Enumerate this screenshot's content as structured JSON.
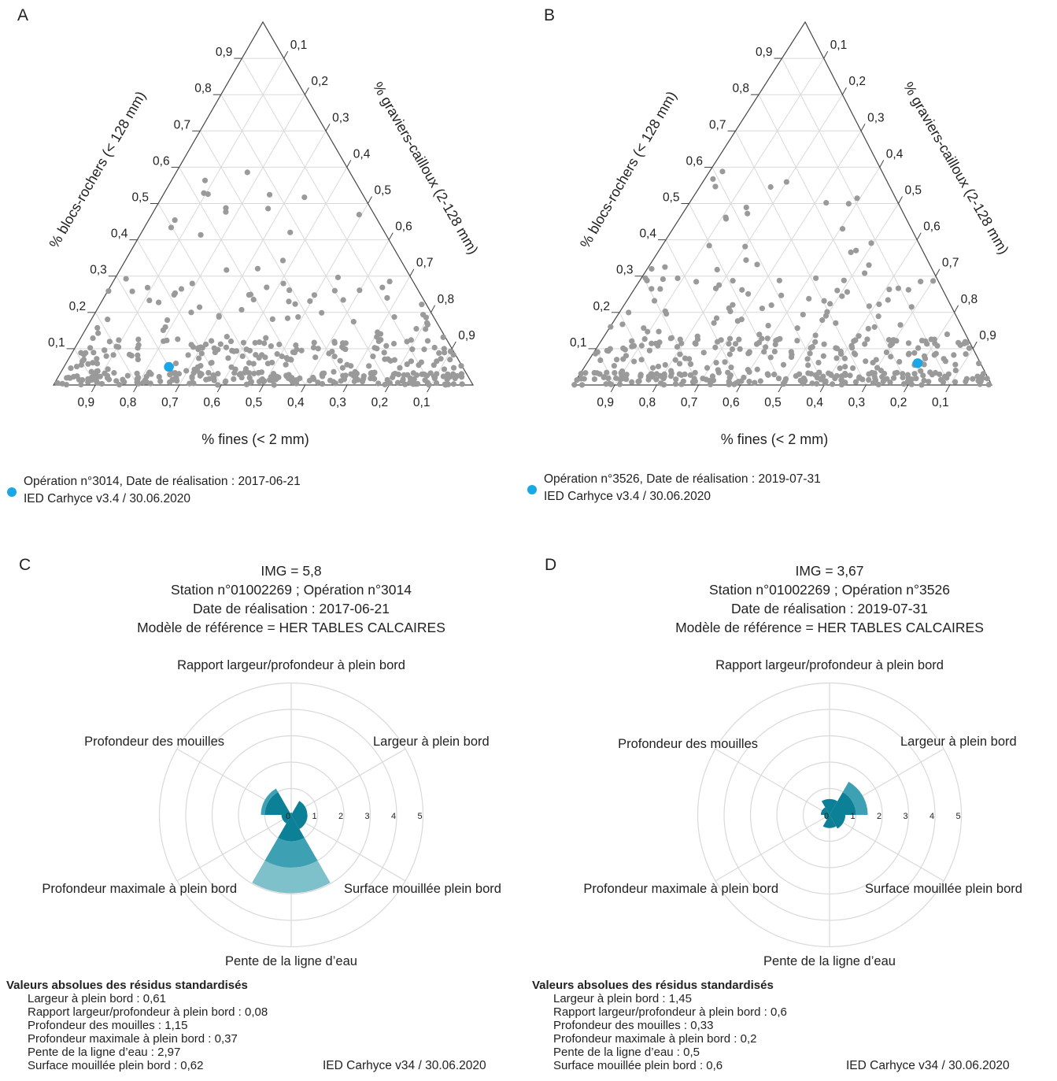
{
  "panels": {
    "A": {
      "letter": "A"
    },
    "B": {
      "letter": "B"
    },
    "C": {
      "letter": "C"
    },
    "D": {
      "letter": "D"
    }
  },
  "colors": {
    "highlight": "#1aa7e6",
    "points": "#9a9a9a",
    "grid": "#d9d9d9",
    "axis": "#444444",
    "rose_dark": "#0b8096",
    "rose_mid": "#3ea1b3",
    "rose_light": "#7ec1cb"
  },
  "chart_data": [
    {
      "type": "scatter",
      "panel": "A",
      "xlabel": "% fines (< 2 mm)",
      "leftlabel": "% blocs-rochers (< 128 mm)",
      "rightlabel": "% graviers-cailloux (2-128 mm)",
      "bottom_ticks": [
        "0,9",
        "0,8",
        "0,7",
        "0,6",
        "0,5",
        "0,4",
        "0,3",
        "0,2",
        "0,1"
      ],
      "left_ticks": [
        "0,1",
        "0,2",
        "0,3",
        "0,4",
        "0,5",
        "0,6",
        "0,7",
        "0,8",
        "0,9"
      ],
      "right_ticks": [
        "0,1",
        "0,2",
        "0,3",
        "0,4",
        "0,5",
        "0,6",
        "0,7",
        "0,8",
        "0,9"
      ],
      "highlight": {
        "fines": 0.7,
        "blocs": 0.05,
        "graviers": 0.25
      },
      "legend": {
        "line1": "Opération n°3014, Date de réalisation : 2017-06-21",
        "line2": "IED Carhyce v3.4 / 30.06.2020"
      }
    },
    {
      "type": "scatter",
      "panel": "B",
      "xlabel": "% fines (< 2 mm)",
      "leftlabel": "% blocs-rochers (< 128 mm)",
      "rightlabel": "% graviers-cailloux (2-128 mm)",
      "bottom_ticks": [
        "0,9",
        "0,8",
        "0,7",
        "0,6",
        "0,5",
        "0,4",
        "0,3",
        "0,2",
        "0,1"
      ],
      "left_ticks": [
        "0,1",
        "0,2",
        "0,3",
        "0,4",
        "0,5",
        "0,6",
        "0,7",
        "0,8",
        "0,9"
      ],
      "right_ticks": [
        "0,1",
        "0,2",
        "0,3",
        "0,4",
        "0,5",
        "0,6",
        "0,7",
        "0,8",
        "0,9"
      ],
      "highlight": {
        "fines": 0.15,
        "blocs": 0.06,
        "graviers": 0.79
      },
      "legend": {
        "line1": "Opération n°3526, Date de réalisation : 2019-07-31",
        "line2": "IED Carhyce v3.4 / 30.06.2020"
      }
    },
    {
      "type": "polar-area",
      "panel": "C",
      "title_lines": [
        "IMG = 5,8",
        "Station n°01002269 ; Opération n°3014",
        "Date de réalisation : 2017-06-21",
        "Modèle de référence = HER TABLES CALCAIRES"
      ],
      "radial_ticks": [
        "0",
        "1",
        "2",
        "3",
        "4",
        "5"
      ],
      "categories": [
        "Rapport largeur/profondeur à plein bord",
        "Largeur à plein bord",
        "Surface mouillée plein bord",
        "Pente de la ligne d’eau",
        "Profondeur maximale à plein bord",
        "Profondeur des mouilles"
      ],
      "values": [
        0.08,
        0.61,
        0.62,
        2.97,
        0.37,
        1.15
      ],
      "residus_header": "Valeurs absolues des résidus standardisés",
      "residus": [
        "Largeur à plein bord : 0,61",
        "Rapport largeur/profondeur à plein bord : 0,08",
        "Profondeur des mouilles : 1,15",
        "Profondeur maximale à plein bord : 0,37",
        "Pente de la ligne d’eau : 2,97",
        "Surface mouillée plein bord : 0,62"
      ],
      "version": "IED Carhyce v34 / 30.06.2020"
    },
    {
      "type": "polar-area",
      "panel": "D",
      "title_lines": [
        "IMG = 3,67",
        "Station n°01002269 ; Opération n°3526",
        "Date de réalisation : 2019-07-31",
        "Modèle de référence = HER TABLES CALCAIRES"
      ],
      "radial_ticks": [
        "0",
        "1",
        "2",
        "3",
        "4",
        "5"
      ],
      "categories": [
        "Rapport largeur/profondeur à plein bord",
        "Largeur à plein bord",
        "Surface mouillée plein bord",
        "Pente de la ligne d’eau",
        "Profondeur maximale à plein bord",
        "Profondeur des mouilles"
      ],
      "values": [
        0.6,
        1.45,
        0.6,
        0.5,
        0.2,
        0.33
      ],
      "residus_header": "Valeurs absolues des résidus standardisés",
      "residus": [
        "Largeur à plein bord : 1,45",
        "Rapport largeur/profondeur à plein bord : 0,6",
        "Profondeur des mouilles : 0,33",
        "Profondeur maximale à plein bord : 0,2",
        "Pente de la ligne d’eau : 0,5",
        "Surface mouillée plein bord : 0,6"
      ],
      "version": "IED Carhyce v34 / 30.06.2020"
    }
  ]
}
